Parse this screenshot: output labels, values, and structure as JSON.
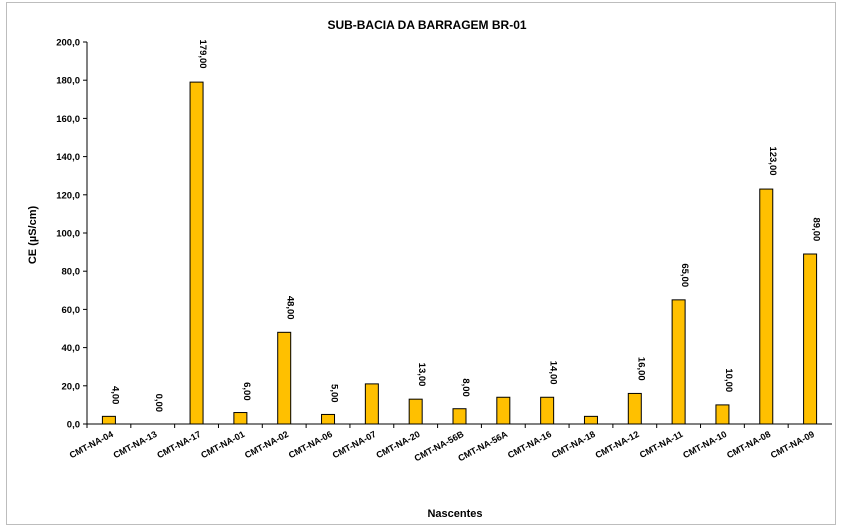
{
  "chart_data": {
    "type": "bar",
    "title": "SUB-BACIA DA BARRAGEM BR-01",
    "xlabel": "Nascentes",
    "ylabel": "CE (µS/cm)",
    "ylim": [
      0,
      200
    ],
    "yticks": [
      "0,0",
      "20,0",
      "40,0",
      "60,0",
      "80,0",
      "100,0",
      "120,0",
      "140,0",
      "160,0",
      "180,0",
      "200,0"
    ],
    "categories": [
      "CMT-NA-04",
      "CMT-NA-13",
      "CMT-NA-17",
      "CMT-NA-01",
      "CMT-NA-02",
      "CMT-NA-06",
      "CMT-NA-07",
      "CMT-NA-20",
      "CMT-NA-56B",
      "CMT-NA-56A",
      "CMT-NA-16",
      "CMT-NA-18",
      "CMT-NA-12",
      "CMT-NA-11",
      "CMT-NA-10",
      "CMT-NA-08",
      "CMT-NA-09"
    ],
    "values": [
      4,
      0,
      179,
      6,
      48,
      5,
      21,
      13,
      8,
      14,
      14,
      4,
      16,
      65,
      10,
      123,
      89
    ],
    "data_labels": [
      "4,00",
      "0,00",
      "179,00",
      "6,00",
      "48,00",
      "5,00",
      "",
      "13,00",
      "8,00",
      "",
      "14,00",
      "",
      "16,00",
      "65,00",
      "10,00",
      "123,00",
      "89,00"
    ],
    "grid": false,
    "legend": "none",
    "bar_color": "#FFC000",
    "bar_edge_color": "#000000"
  }
}
